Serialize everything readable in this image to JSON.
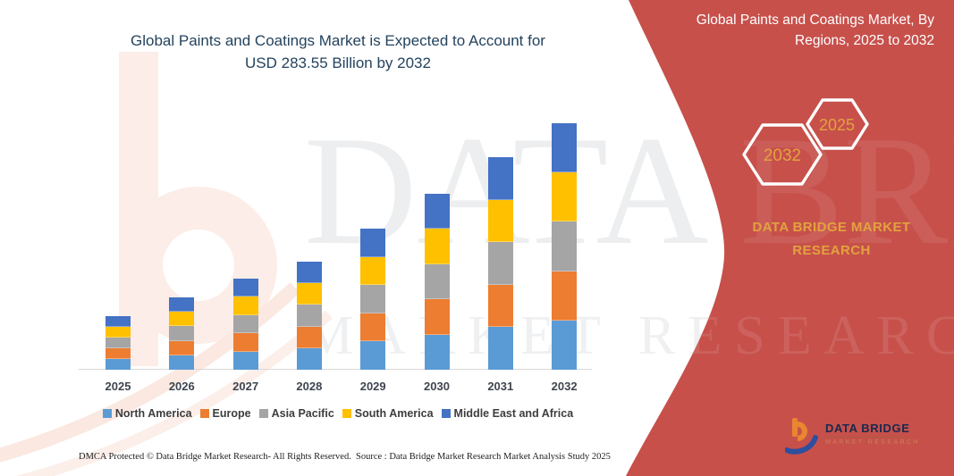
{
  "header": {
    "title_line1": "Global Paints and Coatings Market is Expected to Account for",
    "title_line2": "USD 283.55 Billion by 2032",
    "title_color": "#24435E"
  },
  "banner": {
    "line1": "Global Paints and Coatings Market, By",
    "line2": "Regions, 2025 to 2032",
    "bg_color": "#C7504B",
    "text_color": "#FFFFFF"
  },
  "badges": {
    "hex_back_label": "2032",
    "hex_front_label": "2025",
    "text_color": "#E2A23E",
    "outline_color": "#FFFFFF"
  },
  "brand_panel": {
    "line1": "DATA BRIDGE MARKET",
    "line2": "RESEARCH",
    "color": "#E2A23E"
  },
  "watermark": {
    "line1": "DATA BRIDGE",
    "line2": "MARKET RESEARCH"
  },
  "chart_data": {
    "type": "stacked-bar",
    "title": "Global Paints and Coatings Market is Expected to Account for USD 283.55 Billion by 2032",
    "categories": [
      "2025",
      "2026",
      "2027",
      "2028",
      "2029",
      "2030",
      "2031",
      "2032"
    ],
    "series": [
      {
        "name": "North America",
        "color": "#5B9BD5",
        "values": [
          12.32,
          16.64,
          20.96,
          24.86,
          32.46,
          40.48,
          48.9,
          56.71
        ]
      },
      {
        "name": "Europe",
        "color": "#ED7D31",
        "values": [
          12.32,
          16.64,
          20.96,
          24.86,
          32.46,
          40.48,
          48.9,
          56.71
        ]
      },
      {
        "name": "Asia Pacific",
        "color": "#A5A5A5",
        "values": [
          12.32,
          16.64,
          20.96,
          24.86,
          32.46,
          40.48,
          48.9,
          56.71
        ]
      },
      {
        "name": "South America",
        "color": "#FFC000",
        "values": [
          12.32,
          16.64,
          20.96,
          24.86,
          32.46,
          40.48,
          48.9,
          56.71
        ]
      },
      {
        "name": "Middle East and Africa",
        "color": "#4472C4",
        "values": [
          12.32,
          16.64,
          20.96,
          24.86,
          32.46,
          40.48,
          48.9,
          56.71
        ]
      }
    ],
    "totals_usd_billion_estimated": [
      61.6,
      83.2,
      104.8,
      124.3,
      162.3,
      202.4,
      244.5,
      283.55
    ],
    "xlabel": "",
    "ylabel": "",
    "ylim": [
      0,
      290
    ],
    "grid": false,
    "legend_position": "bottom",
    "note": "No y-axis is displayed in the source image; yearly totals are estimated proportionally from bar heights assuming the 2032 total equals USD 283.55 billion stated in the title; the five regional segments are drawn with equal heights within each bar."
  },
  "footer": {
    "left": "DMCA Protected © Data Bridge Market Research- All Rights Reserved.",
    "right": "Source : Data Bridge Market Research Market Analysis Study 2025"
  },
  "logo": {
    "name": "DATA BRIDGE",
    "subtitle": "MARKET RESEARCH"
  }
}
